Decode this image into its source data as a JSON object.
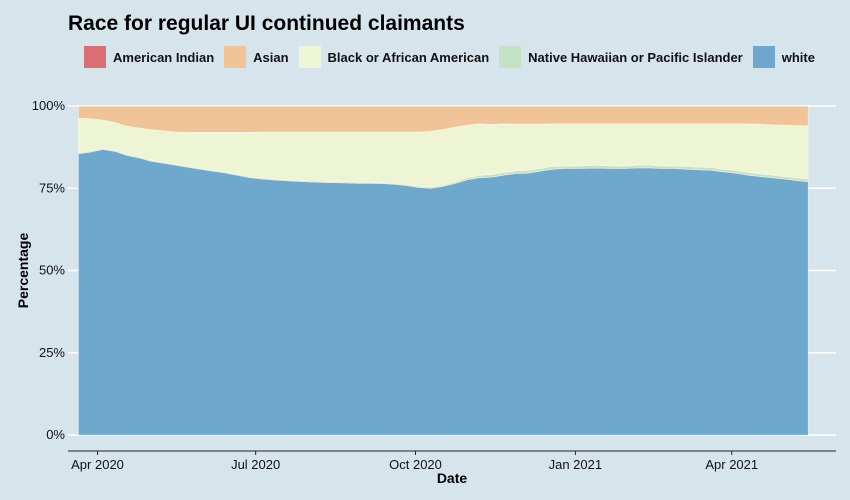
{
  "chart_data": {
    "type": "area",
    "stacked": "percent",
    "title": "Race for regular UI continued claimants",
    "xlabel": "Date",
    "ylabel": "Percentage",
    "ylim": [
      0,
      100
    ],
    "y_ticks": [
      0,
      25,
      50,
      75,
      100
    ],
    "y_tick_labels": [
      "0%",
      "25%",
      "50%",
      "75%",
      "100%"
    ],
    "x_ticks": [
      "2020-04-01",
      "2020-07-01",
      "2020-10-01",
      "2021-01-01",
      "2021-04-01"
    ],
    "x_tick_labels": [
      "Apr 2020",
      "Jul 2020",
      "Oct 2020",
      "Jan 2021",
      "Apr 2021"
    ],
    "xlim": [
      "2020-03-15",
      "2021-05-31"
    ],
    "grid": true,
    "legend_position": "top",
    "dates": [
      "2020-03-21",
      "2020-03-28",
      "2020-04-04",
      "2020-04-11",
      "2020-04-18",
      "2020-04-25",
      "2020-05-02",
      "2020-05-09",
      "2020-05-16",
      "2020-05-23",
      "2020-05-30",
      "2020-06-06",
      "2020-06-13",
      "2020-06-20",
      "2020-06-27",
      "2020-07-04",
      "2020-07-11",
      "2020-07-18",
      "2020-07-25",
      "2020-08-01",
      "2020-08-08",
      "2020-08-15",
      "2020-08-22",
      "2020-08-29",
      "2020-09-05",
      "2020-09-12",
      "2020-09-19",
      "2020-09-26",
      "2020-10-03",
      "2020-10-10",
      "2020-10-17",
      "2020-10-24",
      "2020-10-31",
      "2020-11-07",
      "2020-11-14",
      "2020-11-21",
      "2020-11-28",
      "2020-12-05",
      "2020-12-12",
      "2020-12-19",
      "2020-12-26",
      "2021-01-02",
      "2021-01-09",
      "2021-01-16",
      "2021-01-23",
      "2021-01-30",
      "2021-02-06",
      "2021-02-13",
      "2021-02-20",
      "2021-02-27",
      "2021-03-06",
      "2021-03-13",
      "2021-03-20",
      "2021-03-27",
      "2021-04-03",
      "2021-04-10",
      "2021-04-17",
      "2021-04-24",
      "2021-05-01",
      "2021-05-08",
      "2021-05-15"
    ],
    "series": [
      {
        "name": "white",
        "color": "#6fa8cd",
        "values": [
          85.5,
          86.0,
          86.8,
          86.2,
          85.0,
          84.2,
          83.2,
          82.6,
          82.0,
          81.4,
          80.8,
          80.2,
          79.7,
          79.0,
          78.3,
          77.8,
          77.5,
          77.3,
          77.1,
          76.9,
          76.8,
          76.7,
          76.6,
          76.5,
          76.5,
          76.4,
          76.2,
          75.8,
          75.2,
          75.0,
          75.6,
          76.5,
          77.6,
          78.2,
          78.4,
          79.0,
          79.5,
          79.6,
          80.2,
          80.8,
          81.0,
          81.0,
          81.1,
          81.1,
          81.0,
          81.0,
          81.2,
          81.2,
          81.0,
          81.0,
          80.8,
          80.6,
          80.5,
          80.0,
          79.6,
          79.0,
          78.6,
          78.2,
          77.8,
          77.4,
          77.0
        ]
      },
      {
        "name": "Native Hawaiian or Pacific Islander",
        "color": "#c5e3c4",
        "values": [
          0.3,
          0.3,
          0.3,
          0.3,
          0.3,
          0.3,
          0.3,
          0.3,
          0.3,
          0.3,
          0.3,
          0.3,
          0.3,
          0.3,
          0.3,
          0.3,
          0.3,
          0.3,
          0.3,
          0.3,
          0.3,
          0.3,
          0.3,
          0.3,
          0.3,
          0.3,
          0.3,
          0.3,
          0.4,
          0.4,
          0.4,
          0.5,
          0.6,
          0.7,
          0.8,
          0.8,
          0.8,
          0.8,
          0.8,
          0.8,
          0.8,
          0.8,
          0.8,
          0.8,
          0.8,
          0.8,
          0.8,
          0.8,
          0.8,
          0.8,
          0.8,
          0.8,
          0.8,
          0.8,
          0.8,
          0.8,
          0.8,
          0.8,
          0.8,
          0.8,
          0.8
        ]
      },
      {
        "name": "Black or African American",
        "color": "#eef5d5",
        "values": [
          10.5,
          9.8,
          8.6,
          8.5,
          8.6,
          8.8,
          9.3,
          9.6,
          9.8,
          10.3,
          10.9,
          11.5,
          12.0,
          12.7,
          13.4,
          14.0,
          14.3,
          14.5,
          14.7,
          14.9,
          15.0,
          15.1,
          15.2,
          15.3,
          15.3,
          15.4,
          15.6,
          16.0,
          16.5,
          17.0,
          16.9,
          16.6,
          16.0,
          15.7,
          15.2,
          14.8,
          14.2,
          14.1,
          13.5,
          13.0,
          12.8,
          12.8,
          12.7,
          12.7,
          12.8,
          12.8,
          12.6,
          12.6,
          12.8,
          12.8,
          13.0,
          13.2,
          13.3,
          13.8,
          14.2,
          14.8,
          15.1,
          15.3,
          15.6,
          15.9,
          16.2
        ]
      },
      {
        "name": "Asian",
        "color": "#f0c496",
        "values": [
          3.6,
          3.8,
          4.2,
          4.9,
          6.0,
          6.6,
          7.1,
          7.4,
          7.8,
          7.9,
          7.9,
          7.9,
          7.9,
          7.9,
          7.9,
          7.8,
          7.8,
          7.8,
          7.8,
          7.8,
          7.8,
          7.8,
          7.8,
          7.8,
          7.8,
          7.8,
          7.8,
          7.8,
          7.8,
          7.5,
          7.0,
          6.3,
          5.7,
          5.3,
          5.5,
          5.3,
          5.4,
          5.4,
          5.4,
          5.3,
          5.3,
          5.3,
          5.3,
          5.3,
          5.3,
          5.3,
          5.3,
          5.3,
          5.3,
          5.3,
          5.3,
          5.3,
          5.3,
          5.3,
          5.3,
          5.3,
          5.4,
          5.6,
          5.7,
          5.8,
          5.9
        ]
      },
      {
        "name": "American Indian",
        "color": "#db6e72",
        "values": [
          0.1,
          0.1,
          0.1,
          0.1,
          0.1,
          0.1,
          0.1,
          0.1,
          0.1,
          0.1,
          0.1,
          0.1,
          0.1,
          0.1,
          0.1,
          0.1,
          0.1,
          0.1,
          0.1,
          0.1,
          0.1,
          0.1,
          0.1,
          0.1,
          0.1,
          0.1,
          0.1,
          0.1,
          0.1,
          0.1,
          0.1,
          0.1,
          0.1,
          0.1,
          0.1,
          0.1,
          0.1,
          0.1,
          0.1,
          0.1,
          0.1,
          0.1,
          0.1,
          0.1,
          0.1,
          0.1,
          0.1,
          0.1,
          0.1,
          0.1,
          0.1,
          0.1,
          0.1,
          0.1,
          0.1,
          0.1,
          0.1,
          0.1,
          0.1,
          0.1,
          0.1
        ]
      }
    ],
    "legend_order": [
      "American Indian",
      "Asian",
      "Black or African American",
      "Native Hawaiian or Pacific Islander",
      "white"
    ]
  }
}
